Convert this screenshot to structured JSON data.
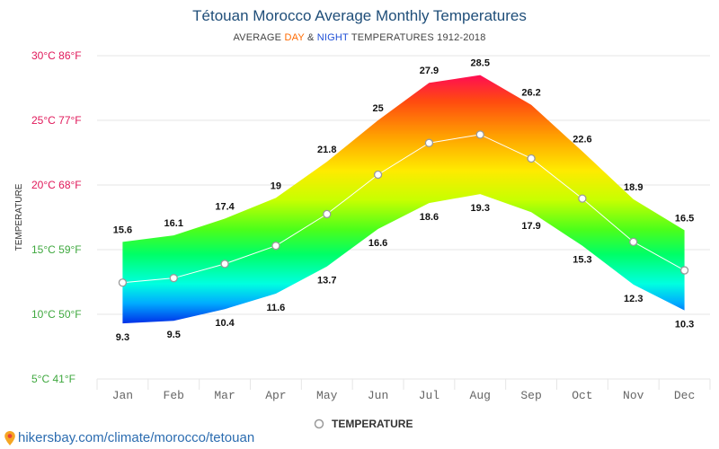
{
  "header": {
    "title": "Tétouan Morocco Average Monthly Temperatures",
    "subtitle_prefix": "AVERAGE ",
    "subtitle_day": "DAY",
    "subtitle_amp": " & ",
    "subtitle_night": "NIGHT",
    "subtitle_suffix": " TEMPERATURES 1912-2018"
  },
  "legend": {
    "label": "TEMPERATURE"
  },
  "footer": {
    "url": "hikersbay.com/climate/morocco/tetouan"
  },
  "colors": {
    "title": "#1f4e79",
    "day_accent": "#ff6a00",
    "night_accent": "#1f4fd6",
    "grid": "#e6e6e6",
    "tick_text": "#666666",
    "footer": "#2b6cb0"
  },
  "chart_data": {
    "type": "area",
    "categories": [
      "Jan",
      "Feb",
      "Mar",
      "Apr",
      "May",
      "Jun",
      "Jul",
      "Aug",
      "Sep",
      "Oct",
      "Nov",
      "Dec"
    ],
    "ylabel": "TEMPERATURE",
    "ylim": [
      5,
      30
    ],
    "yticks": [
      {
        "value": 30,
        "label": "30°C 86°F",
        "color": "#e0185a"
      },
      {
        "value": 25,
        "label": "25°C 77°F",
        "color": "#e0185a"
      },
      {
        "value": 20,
        "label": "20°C 68°F",
        "color": "#e0185a"
      },
      {
        "value": 15,
        "label": "15°C 59°F",
        "color": "#3fa83f"
      },
      {
        "value": 10,
        "label": "10°C 50°F",
        "color": "#3fa83f"
      },
      {
        "value": 5,
        "label": "5°C 41°F",
        "color": "#3fa83f"
      }
    ],
    "grid": true,
    "series": [
      {
        "name": "Day",
        "values": [
          15.6,
          16.1,
          17.4,
          19,
          21.8,
          25,
          27.9,
          28.5,
          26.2,
          22.6,
          18.9,
          16.5
        ]
      },
      {
        "name": "Night",
        "values": [
          9.3,
          9.5,
          10.4,
          11.6,
          13.7,
          16.6,
          18.6,
          19.3,
          17.9,
          15.3,
          12.3,
          10.3
        ]
      },
      {
        "name": "TEMPERATURE",
        "values": [
          12.45,
          12.8,
          13.9,
          15.3,
          17.75,
          20.8,
          23.25,
          23.9,
          22.05,
          18.95,
          15.6,
          13.4
        ]
      }
    ],
    "day_labels": [
      "15.6",
      "16.1",
      "17.4",
      "19",
      "21.8",
      "25",
      "27.9",
      "28.5",
      "26.2",
      "22.6",
      "18.9",
      "16.5"
    ],
    "night_labels": [
      "9.3",
      "9.5",
      "10.4",
      "11.6",
      "13.7",
      "16.6",
      "18.6",
      "19.3",
      "17.9",
      "15.3",
      "12.3",
      "10.3"
    ],
    "legend_position": "bottom-center"
  }
}
